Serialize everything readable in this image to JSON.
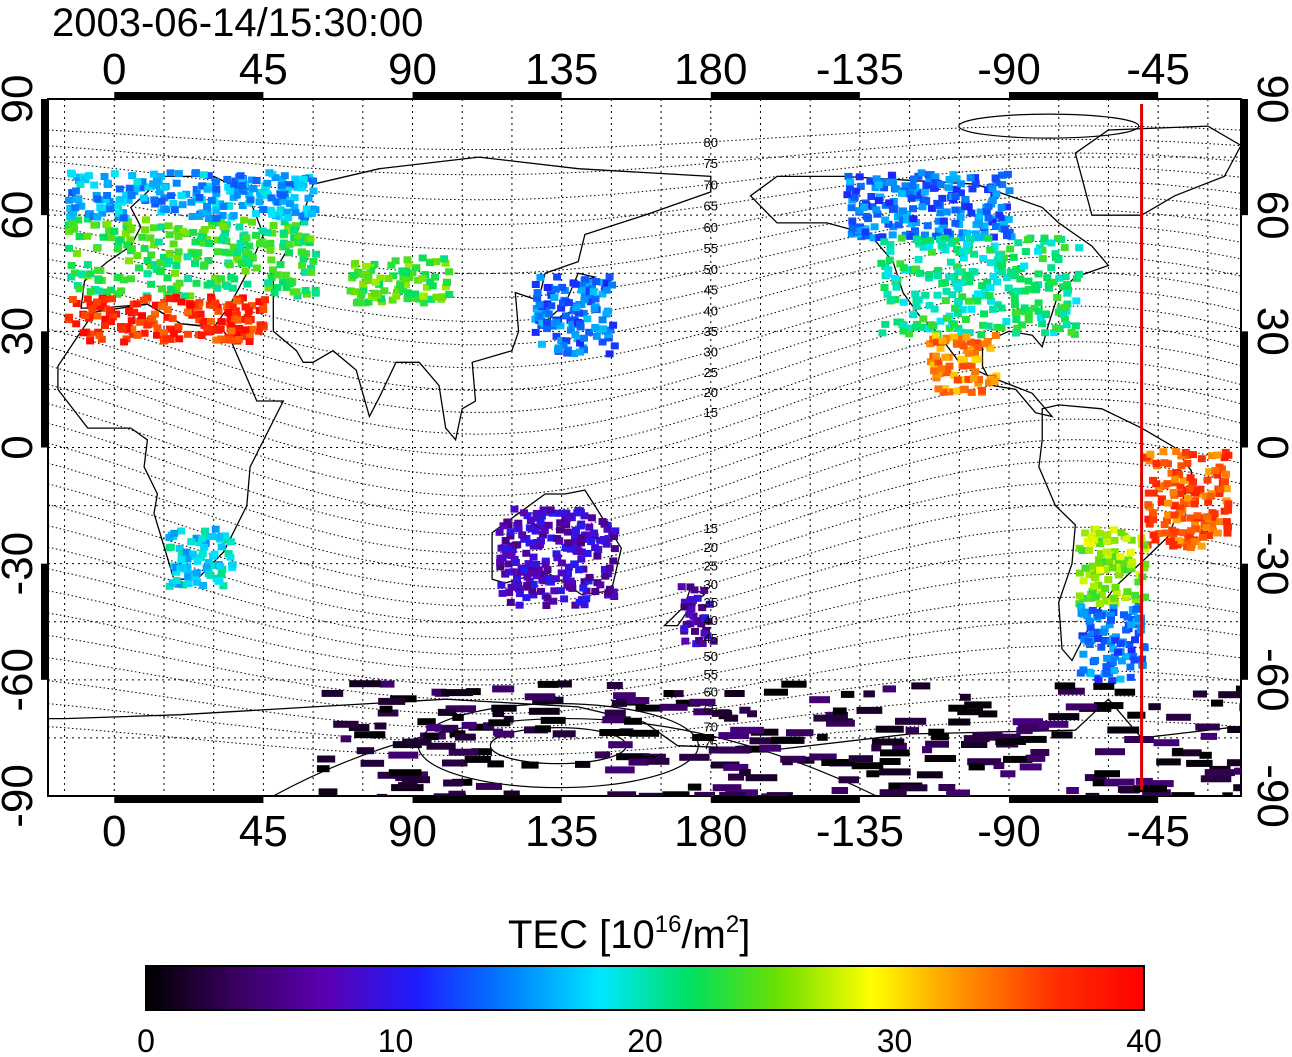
{
  "title": "2003-06-14/15:30:00",
  "map": {
    "lon_ticks": [
      "0",
      "45",
      "90",
      "135",
      "180",
      "-135",
      "-90",
      "-45"
    ],
    "lon_tick_values": [
      0,
      45,
      90,
      135,
      180,
      225,
      270,
      315
    ],
    "lat_ticks": [
      "90",
      "60",
      "30",
      "0",
      "-30",
      "-60",
      "-90"
    ],
    "lat_tick_values": [
      90,
      60,
      30,
      0,
      -30,
      -60,
      -90
    ],
    "contour_labels_north": [
      "80",
      "75",
      "70",
      "65",
      "60",
      "55",
      "50",
      "45",
      "40",
      "35",
      "30",
      "25",
      "20",
      "15"
    ],
    "contour_labels_south": [
      "15",
      "20",
      "25",
      "30",
      "35",
      "40",
      "45",
      "50",
      "55",
      "60",
      "65",
      "70",
      "75"
    ],
    "meridian_line": {
      "lon": 310,
      "color": "#e00000"
    }
  },
  "colorbar": {
    "title_main": "TEC  [10",
    "title_sup1": "16",
    "title_mid": "/m",
    "title_sup2": "2",
    "title_end": "]",
    "ticks": [
      "0",
      "10",
      "20",
      "30",
      "40"
    ],
    "tick_values": [
      0,
      10,
      20,
      30,
      40
    ],
    "range": [
      0,
      40
    ],
    "stops": [
      "#000000",
      "#3a0060",
      "#5a00b4",
      "#1e1eff",
      "#0080ff",
      "#00e6ff",
      "#00e060",
      "#70e000",
      "#ffff00",
      "#ff9000",
      "#ff3000",
      "#ff0000"
    ]
  },
  "chart_data": {
    "type": "heatmap",
    "title": "2003-06-14/15:30:00",
    "colorbar_label": "TEC [10^16/m^2]",
    "clim": [
      0,
      40
    ],
    "xlim": [
      -20,
      340
    ],
    "ylim": [
      -90,
      90
    ],
    "regions": [
      {
        "lon": [
          -15,
          60
        ],
        "lat": [
          40,
          60
        ],
        "tec": 23
      },
      {
        "lon": [
          -15,
          60
        ],
        "lat": [
          60,
          72
        ],
        "tec": 16
      },
      {
        "lon": [
          -15,
          45
        ],
        "lat": [
          28,
          40
        ],
        "tec": 37
      },
      {
        "lon": [
          70,
          100
        ],
        "lat": [
          38,
          50
        ],
        "tec": 24
      },
      {
        "lon": [
          125,
          150
        ],
        "lat": [
          25,
          45
        ],
        "tec": 14
      },
      {
        "lon": [
          220,
          270
        ],
        "lat": [
          55,
          72
        ],
        "tec": 14
      },
      {
        "lon": [
          230,
          290
        ],
        "lat": [
          30,
          55
        ],
        "tec": 21
      },
      {
        "lon": [
          245,
          265
        ],
        "lat": [
          15,
          30
        ],
        "tec": 33
      },
      {
        "lon": [
          310,
          335
        ],
        "lat": [
          -25,
          0
        ],
        "tec": 35
      },
      {
        "lon": [
          290,
          310
        ],
        "lat": [
          -40,
          -20
        ],
        "tec": 26
      },
      {
        "lon": [
          290,
          310
        ],
        "lat": [
          -60,
          -40
        ],
        "tec": 14
      },
      {
        "lon": [
          115,
          150
        ],
        "lat": [
          -40,
          -15
        ],
        "tec": 8
      },
      {
        "lon": [
          170,
          180
        ],
        "lat": [
          -50,
          -35
        ],
        "tec": 7
      },
      {
        "lon": [
          15,
          35
        ],
        "lat": [
          -35,
          -20
        ],
        "tec": 18
      },
      {
        "lon": [
          60,
          340
        ],
        "lat": [
          -90,
          -60
        ],
        "tec": 2
      }
    ]
  }
}
